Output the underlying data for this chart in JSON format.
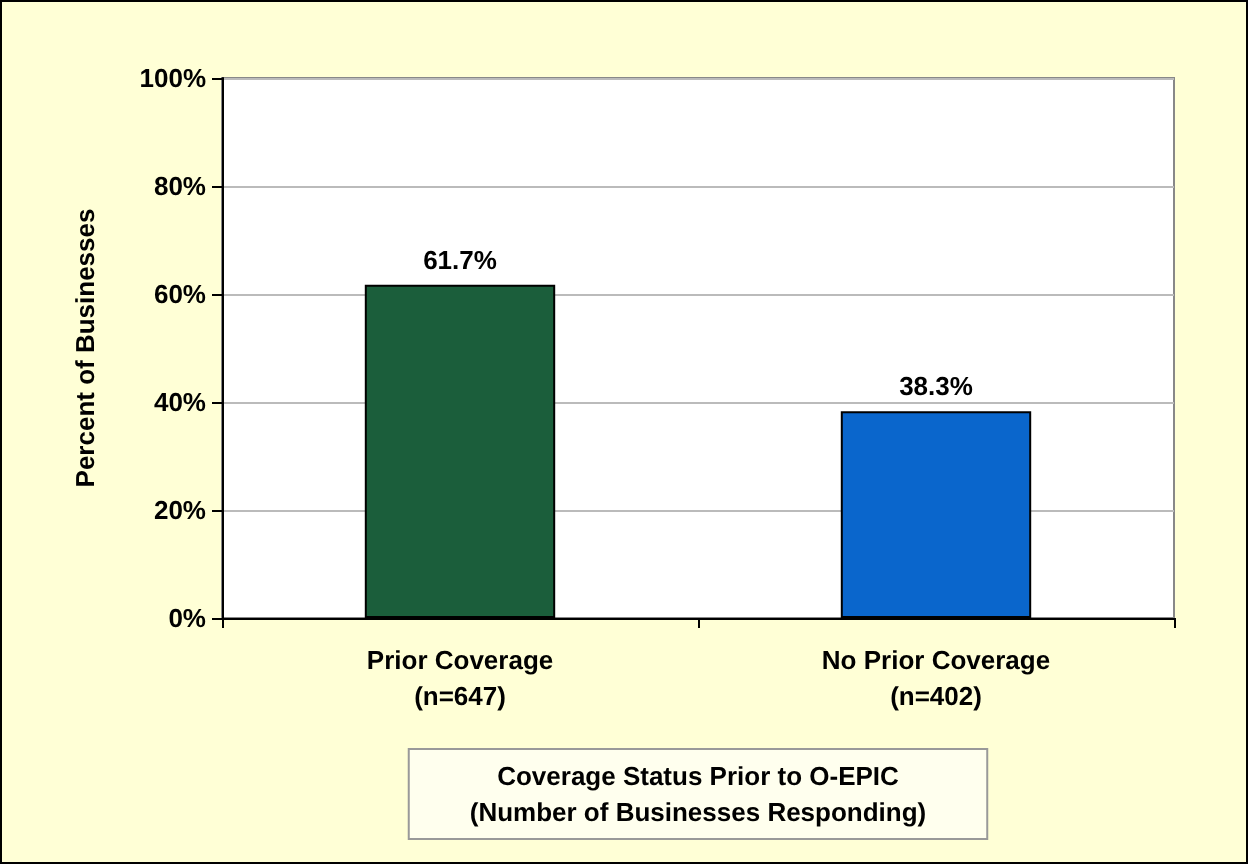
{
  "chart_data": {
    "type": "bar",
    "ylabel": "Percent of Businesses",
    "xlabel": "Coverage Status Prior to O-EPIC\n(Number of Businesses Responding)",
    "categories": [
      "Prior Coverage\n(n=647)",
      "No Prior Coverage\n(n=402)"
    ],
    "values": [
      61.7,
      38.3
    ],
    "colors": [
      "#1b5e3b",
      "#0a66cc"
    ],
    "value_labels": [
      "61.7%",
      "38.3%"
    ],
    "ylim": [
      0,
      100
    ],
    "yticks": [
      {
        "value": 0,
        "label": "0%"
      },
      {
        "value": 20,
        "label": "20%"
      },
      {
        "value": 40,
        "label": "40%"
      },
      {
        "value": 60,
        "label": "60%"
      },
      {
        "value": 80,
        "label": "80%"
      },
      {
        "value": 100,
        "label": "100%"
      }
    ],
    "grid": true
  }
}
